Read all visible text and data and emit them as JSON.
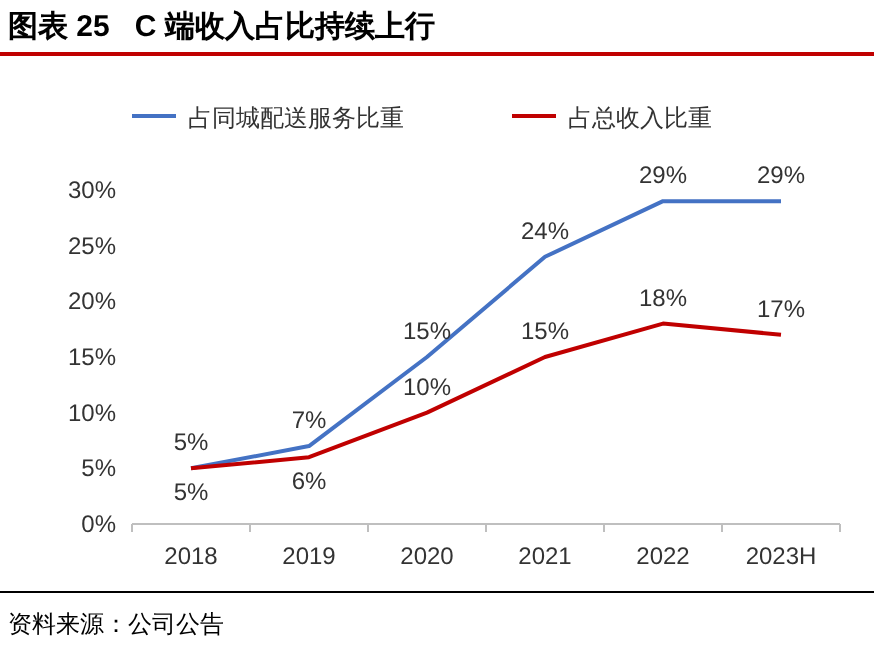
{
  "chart_data": {
    "type": "line",
    "title": "图表 25   C 端收入占比持续上行",
    "categories": [
      "2018",
      "2019",
      "2020",
      "2021",
      "2022",
      "2023H"
    ],
    "series": [
      {
        "name": "占同城配送服务比重",
        "color": "#4472c4",
        "values": [
          5,
          7,
          15,
          24,
          29,
          29
        ],
        "value_labels": [
          "5%",
          "7%",
          "15%",
          "24%",
          "29%",
          "29%"
        ]
      },
      {
        "name": "占总收入比重",
        "color": "#c00000",
        "values": [
          5,
          6,
          10,
          15,
          18,
          17
        ],
        "value_labels": [
          "5%",
          "6%",
          "10%",
          "15%",
          "18%",
          "17%"
        ]
      }
    ],
    "ylim": [
      0,
      30
    ],
    "yticks": [
      {
        "value": 0,
        "label": "0%"
      },
      {
        "value": 5,
        "label": "5%"
      },
      {
        "value": 10,
        "label": "10%"
      },
      {
        "value": 15,
        "label": "15%"
      },
      {
        "value": 20,
        "label": "20%"
      },
      {
        "value": 25,
        "label": "25%"
      },
      {
        "value": 30,
        "label": "30%"
      }
    ],
    "legend": "top",
    "annotations": [
      "资料来源：公司公告"
    ]
  }
}
